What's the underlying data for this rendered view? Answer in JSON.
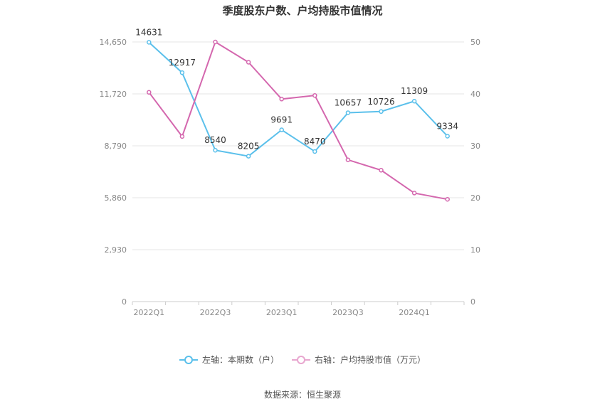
{
  "chart_data": {
    "type": "line",
    "title": "季度股东户数、户均持股市值情况",
    "categories": [
      "2022Q1",
      "2022Q2",
      "2022Q3",
      "2022Q4",
      "2023Q1",
      "2023Q2",
      "2023Q3",
      "2023Q4",
      "2024Q1",
      "2024Q2"
    ],
    "x_tick_labels": [
      "2022Q1",
      "2022Q3",
      "2023Q1",
      "2023Q3",
      "2024Q1"
    ],
    "left_axis": {
      "ylim": [
        0,
        14650
      ],
      "ticks": [
        0,
        2930,
        5860,
        8790,
        11720,
        14650
      ],
      "tick_labels": [
        "0",
        "2,930",
        "5,860",
        "8,790",
        "11,720",
        "14,650"
      ]
    },
    "right_axis": {
      "ylim": [
        0,
        50
      ],
      "ticks": [
        0,
        10,
        20,
        30,
        40,
        50
      ],
      "tick_labels": [
        "0",
        "10",
        "20",
        "30",
        "40",
        "50"
      ]
    },
    "series": [
      {
        "name": "左轴：本期数（户）",
        "axis": "left",
        "color": "#5bc0eb",
        "values": [
          14631,
          12917,
          8540,
          8205,
          9691,
          8470,
          10657,
          10726,
          11309,
          9334
        ],
        "labels": [
          "14631",
          "12917",
          "8540",
          "8205",
          "9691",
          "8470",
          "10657",
          "10726",
          "11309",
          "9334"
        ]
      },
      {
        "name": "右轴：户均持股市值（万元）",
        "axis": "right",
        "color": "#d467ae",
        "values": [
          40.3,
          31.8,
          50.0,
          46.1,
          39.0,
          39.7,
          27.3,
          25.3,
          20.9,
          19.7
        ]
      }
    ],
    "grid": true,
    "legend_position": "bottom"
  },
  "source_text": "数据来源：恒生聚源"
}
